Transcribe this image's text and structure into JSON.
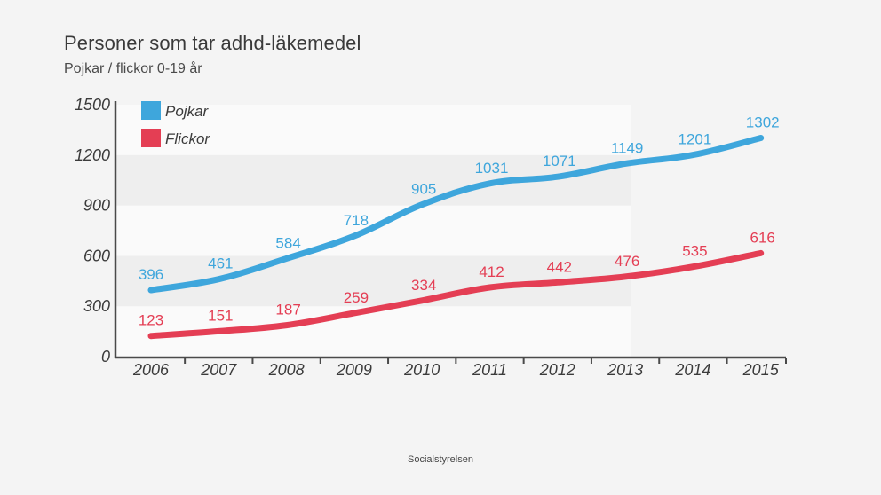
{
  "chart_data": {
    "type": "line",
    "title": "Personer som tar adhd-läkemedel",
    "subtitle": "Pojkar / flickor 0-19 år",
    "source": "Socialstyrelsen",
    "x": [
      "2006",
      "2007",
      "2008",
      "2009",
      "2010",
      "2011",
      "2012",
      "2013",
      "2014",
      "2015"
    ],
    "yticks": [
      "0",
      "300",
      "600",
      "900",
      "1200",
      "1500"
    ],
    "ylim": [
      0,
      1500
    ],
    "legend_position": "top-left",
    "series": [
      {
        "name": "Pojkar",
        "color": "#3ea6dc",
        "values": [
          396,
          461,
          584,
          718,
          905,
          1031,
          1071,
          1149,
          1201,
          1302
        ],
        "labels": [
          "396",
          "461",
          "584",
          "718",
          "905",
          "1031",
          "1071",
          "1149",
          "1201",
          "1302"
        ]
      },
      {
        "name": "Flickor",
        "color": "#e43e54",
        "values": [
          123,
          151,
          187,
          259,
          334,
          412,
          442,
          476,
          535,
          616
        ],
        "labels": [
          "123",
          "151",
          "187",
          "259",
          "334",
          "412",
          "442",
          "476",
          "535",
          "616"
        ]
      }
    ]
  }
}
